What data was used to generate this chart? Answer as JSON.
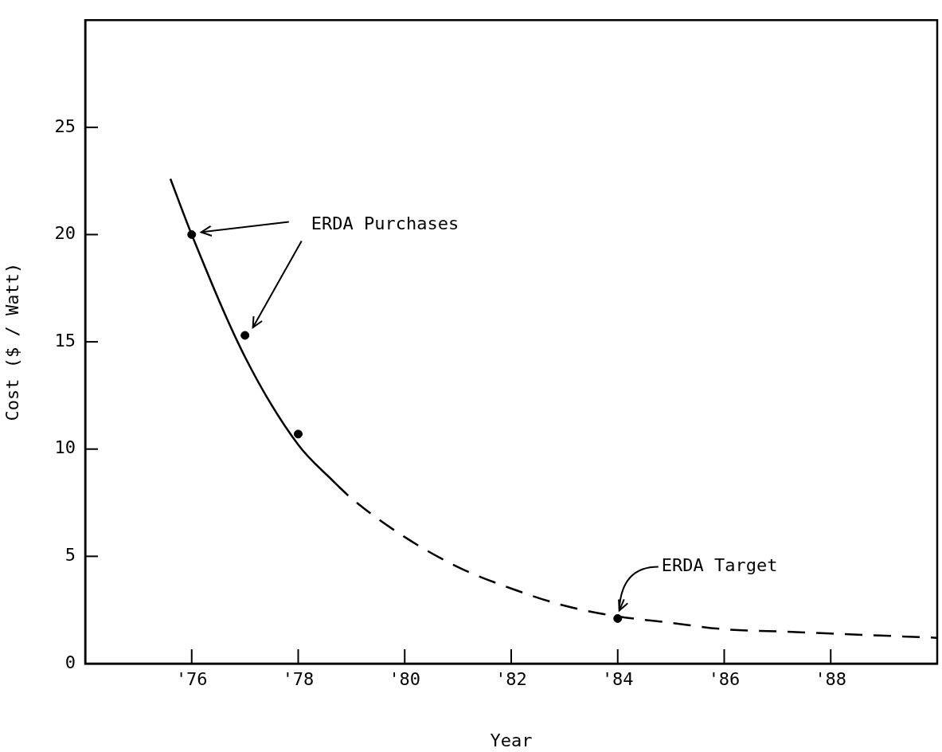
{
  "chart_data": {
    "type": "line",
    "xlabel": "Year",
    "ylabel": "Cost ($ / Watt)",
    "xlim": [
      74,
      90
    ],
    "xticks": [
      {
        "value": 74,
        "label": null
      },
      {
        "value": 76,
        "label": "'76"
      },
      {
        "value": 78,
        "label": "'78"
      },
      {
        "value": 80,
        "label": "'80"
      },
      {
        "value": 82,
        "label": "'82"
      },
      {
        "value": 84,
        "label": "'84"
      },
      {
        "value": 86,
        "label": "'86"
      },
      {
        "value": 88,
        "label": "'88"
      }
    ],
    "ylim": [
      0,
      30
    ],
    "yticks": [
      0,
      5,
      10,
      15,
      20,
      25
    ],
    "legend": false,
    "series": [
      {
        "type": "line",
        "color": "#000000",
        "line_style": "solid",
        "marker": "none",
        "x": [
          75.6,
          76,
          77,
          78,
          78.7
        ],
        "values": [
          22.6,
          20,
          14.3,
          10.2,
          8.4
        ]
      },
      {
        "type": "line",
        "color": "#000000",
        "line_style": "dashed",
        "marker": "none",
        "x": [
          78.7,
          79,
          80,
          81,
          82,
          83,
          84,
          85,
          86,
          87,
          88,
          90
        ],
        "values": [
          8.4,
          7.7,
          5.9,
          4.5,
          3.5,
          2.7,
          2.2,
          1.9,
          1.6,
          1.5,
          1.4,
          1.2
        ]
      },
      {
        "type": "scatter",
        "color": "#000000",
        "marker": "circle",
        "x": [
          76,
          77,
          78,
          84
        ],
        "values": [
          20,
          15.3,
          10.7,
          2.1
        ]
      }
    ],
    "annotations": [
      "ERDA Purchases",
      "ERDA Target"
    ]
  }
}
